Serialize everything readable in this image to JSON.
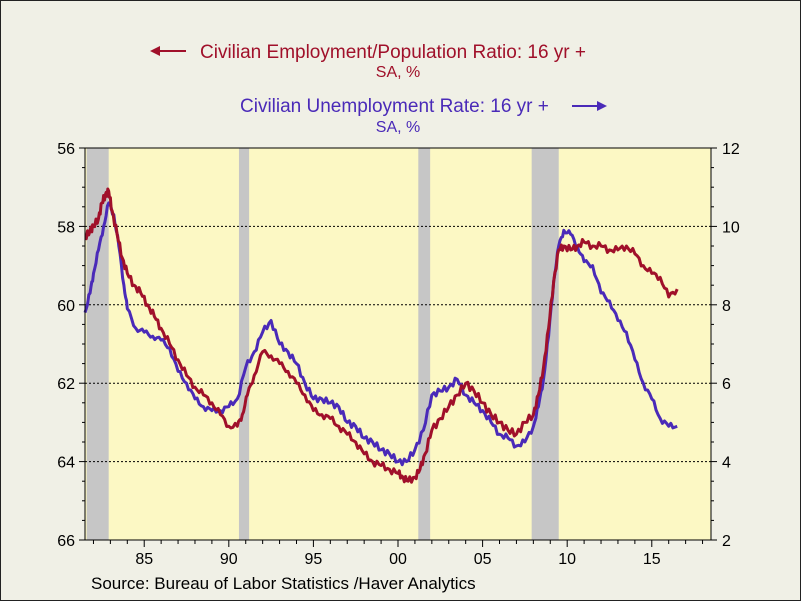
{
  "chart_data": {
    "type": "line",
    "legend": [
      {
        "label": "Civilian Employment/Population Ratio: 16 yr +",
        "sublabel": "SA, %",
        "axis": "left",
        "arrow": "left",
        "color": "#a0102a"
      },
      {
        "label": "Civilian Unemployment Rate: 16 yr +",
        "sublabel": "SA, %",
        "axis": "right",
        "arrow": "right",
        "color": "#4a2ab8"
      }
    ],
    "source": "Source:  Bureau of Labor Statistics /Haver Analytics",
    "x_axis": {
      "range": [
        1981.5,
        2018.5
      ],
      "ticks": [
        1985,
        1990,
        1995,
        2000,
        2005,
        2010,
        2015
      ],
      "tick_labels": [
        "85",
        "90",
        "95",
        "00",
        "05",
        "10",
        "15"
      ]
    },
    "y_left": {
      "range": [
        66,
        56
      ],
      "inverted": true,
      "ticks": [
        56,
        58,
        60,
        62,
        64,
        66
      ],
      "tick_labels": [
        "56",
        "58",
        "60",
        "62",
        "64",
        "66"
      ]
    },
    "y_right": {
      "range": [
        2,
        12
      ],
      "ticks": [
        2,
        4,
        6,
        8,
        10,
        12
      ],
      "tick_labels": [
        "2",
        "4",
        "6",
        "8",
        "10",
        "12"
      ]
    },
    "gridlines_at_left": [
      58,
      60,
      62,
      64
    ],
    "background_color": "#fcf8c4",
    "recession_shading_color": "#c6c6c6",
    "recessions": [
      [
        1981.6,
        1982.9
      ],
      [
        1990.6,
        1991.2
      ],
      [
        2001.2,
        2001.9
      ],
      [
        2007.9,
        2009.5
      ]
    ],
    "series": [
      {
        "name": "Civilian Employment/Population Ratio: 16 yr +",
        "axis": "left",
        "color": "#a0102a",
        "x": [
          1981.5,
          1981.8,
          1982.0,
          1982.3,
          1982.5,
          1982.7,
          1982.9,
          1983.1,
          1983.4,
          1983.7,
          1984.0,
          1984.4,
          1984.8,
          1985.2,
          1985.6,
          1986.0,
          1986.5,
          1987.0,
          1987.5,
          1988.0,
          1988.5,
          1989.0,
          1989.5,
          1990.0,
          1990.5,
          1990.8,
          1991.1,
          1991.5,
          1992.0,
          1992.5,
          1993.0,
          1993.5,
          1994.0,
          1994.5,
          1995.0,
          1995.5,
          1996.0,
          1996.5,
          1997.0,
          1997.5,
          1998.0,
          1998.5,
          1999.0,
          1999.5,
          2000.0,
          2000.3,
          2000.6,
          2001.0,
          2001.3,
          2001.6,
          2002.0,
          2002.5,
          2003.0,
          2003.5,
          2004.0,
          2004.5,
          2005.0,
          2005.5,
          2006.0,
          2006.5,
          2007.0,
          2007.5,
          2008.0,
          2008.3,
          2008.6,
          2008.9,
          2009.2,
          2009.5,
          2009.8,
          2010.2,
          2010.6,
          2011.0,
          2011.5,
          2012.0,
          2012.5,
          2013.0,
          2013.5,
          2014.0,
          2014.5,
          2015.0,
          2015.5,
          2016.0,
          2016.5
        ],
        "values": [
          58.3,
          58.1,
          58.0,
          57.8,
          57.4,
          57.2,
          57.1,
          57.6,
          58.2,
          58.8,
          59.2,
          59.5,
          59.7,
          60.0,
          60.3,
          60.6,
          61.0,
          61.4,
          61.8,
          62.1,
          62.3,
          62.5,
          62.8,
          63.1,
          63.1,
          62.8,
          62.3,
          61.8,
          61.2,
          61.3,
          61.5,
          61.7,
          62.0,
          62.3,
          62.7,
          62.8,
          62.9,
          63.1,
          63.3,
          63.5,
          63.8,
          64.0,
          64.1,
          64.2,
          64.3,
          64.4,
          64.5,
          64.4,
          64.2,
          63.8,
          63.2,
          62.9,
          62.6,
          62.3,
          62.0,
          62.2,
          62.5,
          62.8,
          63.0,
          63.2,
          63.3,
          63.0,
          62.8,
          62.3,
          61.6,
          60.6,
          59.4,
          58.6,
          58.5,
          58.6,
          58.5,
          58.4,
          58.5,
          58.5,
          58.6,
          58.6,
          58.5,
          58.7,
          59.0,
          59.2,
          59.3,
          59.8,
          59.6
        ]
      },
      {
        "name": "Civilian Unemployment Rate: 16 yr +",
        "axis": "right",
        "color": "#4a2ab8",
        "x": [
          1981.5,
          1981.8,
          1982.0,
          1982.3,
          1982.6,
          1982.9,
          1983.2,
          1983.5,
          1983.8,
          1984.0,
          1984.5,
          1985.0,
          1985.5,
          1986.0,
          1986.5,
          1987.0,
          1987.5,
          1988.0,
          1988.5,
          1989.0,
          1989.5,
          1990.0,
          1990.5,
          1991.0,
          1991.5,
          1992.0,
          1992.5,
          1993.0,
          1993.5,
          1994.0,
          1994.5,
          1995.0,
          1995.5,
          1996.0,
          1996.5,
          1997.0,
          1997.5,
          1998.0,
          1998.5,
          1999.0,
          1999.5,
          2000.0,
          2000.5,
          2001.0,
          2001.5,
          2002.0,
          2002.5,
          2003.0,
          2003.5,
          2004.0,
          2004.5,
          2005.0,
          2005.5,
          2006.0,
          2006.5,
          2007.0,
          2007.5,
          2008.0,
          2008.3,
          2008.6,
          2008.9,
          2009.2,
          2009.5,
          2009.8,
          2010.2,
          2010.6,
          2011.0,
          2011.5,
          2012.0,
          2012.5,
          2013.0,
          2013.5,
          2014.0,
          2014.5,
          2015.0,
          2015.5,
          2016.0,
          2016.5
        ],
        "values": [
          7.8,
          8.3,
          8.8,
          9.4,
          10.0,
          10.6,
          10.3,
          9.5,
          8.5,
          7.9,
          7.4,
          7.3,
          7.2,
          7.1,
          6.9,
          6.3,
          6.0,
          5.6,
          5.4,
          5.3,
          5.3,
          5.4,
          5.6,
          6.4,
          6.8,
          7.3,
          7.6,
          7.0,
          6.8,
          6.5,
          6.0,
          5.6,
          5.6,
          5.5,
          5.4,
          5.0,
          4.9,
          4.6,
          4.5,
          4.3,
          4.2,
          4.0,
          4.0,
          4.3,
          4.8,
          5.7,
          5.8,
          5.9,
          6.1,
          5.7,
          5.5,
          5.3,
          5.0,
          4.7,
          4.6,
          4.4,
          4.5,
          4.9,
          5.4,
          6.1,
          7.2,
          8.6,
          9.5,
          9.9,
          9.8,
          9.5,
          9.1,
          9.0,
          8.3,
          8.1,
          7.6,
          7.3,
          6.6,
          6.0,
          5.6,
          5.1,
          4.9,
          4.9
        ]
      }
    ]
  }
}
